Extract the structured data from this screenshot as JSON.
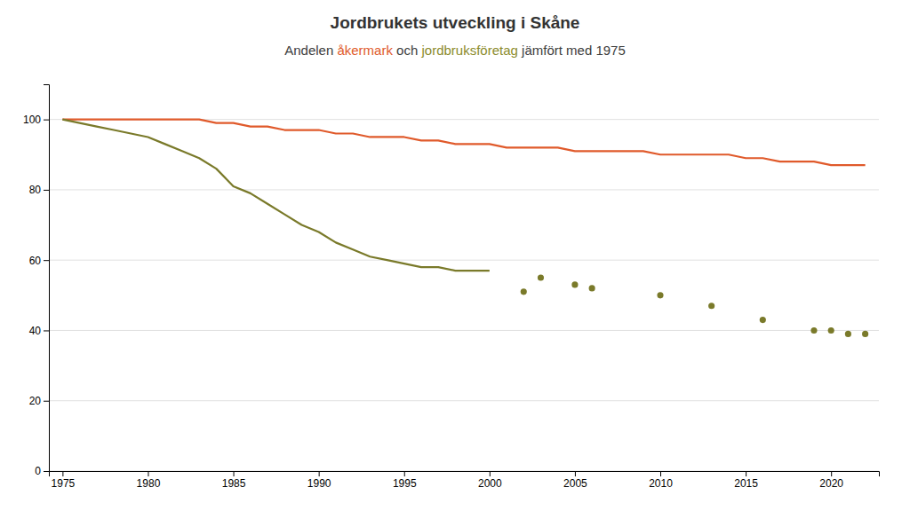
{
  "chart_data": {
    "type": "line",
    "title": "Jordbrukets utveckling i Skåne",
    "subtitle": [
      {
        "text": "Andelen ",
        "color": "#3D3D3D"
      },
      {
        "text": "åkermark",
        "color": "#E05A2B"
      },
      {
        "text": " och ",
        "color": "#3D3D3D"
      },
      {
        "text": "jordbruksföretag",
        "color": "#8B8B2B"
      },
      {
        "text": " jämfört med 1975",
        "color": "#3D3D3D"
      }
    ],
    "x": [
      1975,
      1976,
      1977,
      1978,
      1979,
      1980,
      1981,
      1982,
      1983,
      1984,
      1985,
      1986,
      1987,
      1988,
      1989,
      1990,
      1991,
      1992,
      1993,
      1994,
      1995,
      1996,
      1997,
      1998,
      1999,
      2000,
      2001,
      2002,
      2003,
      2004,
      2005,
      2006,
      2007,
      2008,
      2009,
      2010,
      2011,
      2012,
      2013,
      2014,
      2015,
      2016,
      2017,
      2018,
      2019,
      2020,
      2021,
      2022
    ],
    "series": [
      {
        "type": "line",
        "color": "#E05A2B",
        "values": [
          100,
          100,
          100,
          100,
          100,
          100,
          100,
          100,
          100,
          99,
          99,
          98,
          98,
          97,
          97,
          97,
          96,
          96,
          95,
          95,
          95,
          94,
          94,
          93,
          93,
          93,
          92,
          92,
          92,
          92,
          91,
          91,
          91,
          91,
          91,
          90,
          90,
          90,
          90,
          90,
          89,
          89,
          88,
          88,
          88,
          87,
          87,
          87
        ]
      },
      {
        "type": "line",
        "color": "#7A7A2A",
        "values": [
          100,
          99,
          98,
          97,
          96,
          95,
          93,
          91,
          89,
          86,
          81,
          79,
          76,
          73,
          70,
          68,
          65,
          63,
          61,
          60,
          59,
          58,
          58,
          57,
          57,
          57,
          null,
          null,
          null,
          null,
          null,
          null,
          null,
          null,
          null,
          null,
          null,
          null,
          null,
          null,
          null,
          null,
          null,
          null,
          null,
          null,
          null,
          null
        ]
      },
      {
        "type": "scatter",
        "color": "#7A7A2A",
        "marker": "circle",
        "values": [
          null,
          null,
          null,
          null,
          null,
          null,
          null,
          null,
          null,
          null,
          null,
          null,
          null,
          null,
          null,
          null,
          null,
          null,
          null,
          null,
          null,
          null,
          null,
          null,
          null,
          null,
          null,
          51,
          55,
          null,
          53,
          52,
          null,
          null,
          null,
          50,
          null,
          null,
          47,
          null,
          null,
          43,
          null,
          null,
          40,
          40,
          39,
          39
        ]
      }
    ],
    "xlim": [
      1974.2,
      2022.8
    ],
    "xticks": [
      1975,
      1980,
      1985,
      1990,
      1995,
      2000,
      2005,
      2010,
      2015,
      2020
    ],
    "ylim": [
      0,
      110
    ],
    "yticks": [
      0,
      20,
      40,
      60,
      80,
      100
    ],
    "grid": "y"
  }
}
